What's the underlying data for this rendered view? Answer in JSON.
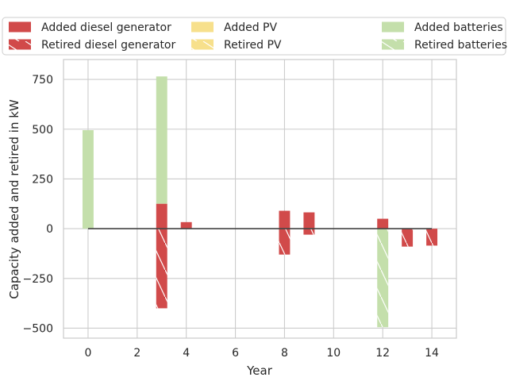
{
  "chart_data": {
    "type": "bar",
    "title": "",
    "xlabel": "Year",
    "ylabel": "Capacity added and retired in kW",
    "xlim": [
      -1,
      15
    ],
    "ylim": [
      -550,
      850
    ],
    "xticks": [
      0,
      2,
      4,
      6,
      8,
      10,
      12,
      14
    ],
    "yticks": [
      -500,
      -250,
      0,
      250,
      500,
      750
    ],
    "ytick_labels": [
      "−500",
      "−250",
      "0",
      "250",
      "500",
      "750"
    ],
    "grid": true,
    "legend_placement": "top, outside plot, 3 columns",
    "legend": [
      {
        "label": "Added diesel generator",
        "color": "#d14a4a",
        "hatch": false
      },
      {
        "label": "Added PV",
        "color": "#f7e08c",
        "hatch": false
      },
      {
        "label": "Added batteries",
        "color": "#c4dfab",
        "hatch": false
      },
      {
        "label": "Retired diesel generator",
        "color": "#d14a4a",
        "hatch": true
      },
      {
        "label": "Retired PV",
        "color": "#f7e08c",
        "hatch": true
      },
      {
        "label": "Retired batteries",
        "color": "#c4dfab",
        "hatch": true
      }
    ],
    "bars": [
      {
        "year": 0,
        "kind": "Added batteries",
        "from": 0,
        "to": 495
      },
      {
        "year": 3,
        "kind": "Added batteries",
        "from": 125,
        "to": 765
      },
      {
        "year": 3,
        "kind": "Added diesel generator",
        "from": 0,
        "to": 125
      },
      {
        "year": 3,
        "kind": "Retired diesel generator",
        "from": -400,
        "to": 0
      },
      {
        "year": 4,
        "kind": "Added diesel generator",
        "from": 0,
        "to": 33
      },
      {
        "year": 8,
        "kind": "Added diesel generator",
        "from": 0,
        "to": 90
      },
      {
        "year": 8,
        "kind": "Retired diesel generator",
        "from": -130,
        "to": 0
      },
      {
        "year": 9,
        "kind": "Added diesel generator",
        "from": 0,
        "to": 82
      },
      {
        "year": 9,
        "kind": "Retired diesel generator",
        "from": -30,
        "to": 0
      },
      {
        "year": 12,
        "kind": "Added diesel generator",
        "from": 0,
        "to": 50
      },
      {
        "year": 12,
        "kind": "Retired batteries",
        "from": -495,
        "to": 0
      },
      {
        "year": 13,
        "kind": "Retired diesel generator",
        "from": -90,
        "to": 0
      },
      {
        "year": 14,
        "kind": "Retired diesel generator",
        "from": -85,
        "to": 0
      }
    ],
    "zero_line": {
      "from_year": 0,
      "to_year": 14,
      "value": 0,
      "color": "#444444"
    }
  }
}
